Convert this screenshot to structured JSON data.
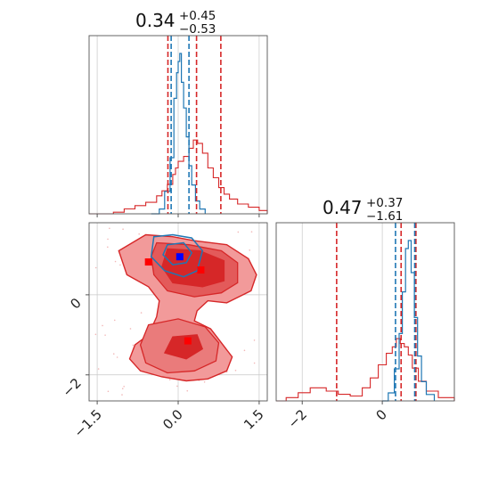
{
  "chart_data": {
    "type": "corner",
    "colors": {
      "primary": "#d62728",
      "secondary": "#1f77b4",
      "marker_blue": "#0000ff",
      "marker_red": "#ff0000"
    },
    "grid": true,
    "titles": [
      {
        "param": 0,
        "value": "0.34",
        "plus": "+0.45",
        "minus": "−0.53"
      },
      {
        "param": 1,
        "value": "0.47",
        "plus": "+0.37",
        "minus": "−1.61"
      }
    ],
    "axes": {
      "p0_ticks": [
        "−1.5",
        "0.0",
        "1.5"
      ],
      "p0_tick_values": [
        -1.5,
        0.0,
        1.5
      ],
      "p0_range": [
        -1.65,
        1.65
      ],
      "p1_ticks_y": [
        "0",
        "−2"
      ],
      "p1_tick_values_y": [
        0,
        -2
      ],
      "p1_range_y": [
        -2.65,
        1.8
      ],
      "p1_ticks_x": [
        "−2",
        "0"
      ],
      "p1_tick_values_x": [
        -2,
        0
      ],
      "p1_range_x": [
        -2.65,
        1.8
      ]
    },
    "hist_p0": {
      "red_bins": [
        [
          -1.65,
          0
        ],
        [
          -1.2,
          0.01
        ],
        [
          -1.0,
          0.03
        ],
        [
          -0.8,
          0.05
        ],
        [
          -0.6,
          0.07
        ],
        [
          -0.4,
          0.11
        ],
        [
          -0.3,
          0.14
        ],
        [
          -0.2,
          0.18
        ],
        [
          -0.1,
          0.24
        ],
        [
          -0.05,
          0.28
        ],
        [
          0.0,
          0.32
        ],
        [
          0.1,
          0.35
        ],
        [
          0.2,
          0.4
        ],
        [
          0.28,
          0.45
        ],
        [
          0.36,
          0.43
        ],
        [
          0.45,
          0.37
        ],
        [
          0.55,
          0.28
        ],
        [
          0.65,
          0.22
        ],
        [
          0.75,
          0.16
        ],
        [
          0.85,
          0.12
        ],
        [
          0.95,
          0.09
        ],
        [
          1.1,
          0.06
        ],
        [
          1.3,
          0.04
        ],
        [
          1.5,
          0.02
        ],
        [
          1.65,
          0
        ]
      ],
      "blue_bins": [
        [
          -0.5,
          0
        ],
        [
          -0.35,
          0.03
        ],
        [
          -0.25,
          0.14
        ],
        [
          -0.15,
          0.35
        ],
        [
          -0.08,
          0.72
        ],
        [
          -0.03,
          0.88
        ],
        [
          0.0,
          0.95
        ],
        [
          0.03,
          1.0
        ],
        [
          0.06,
          0.82
        ],
        [
          0.1,
          0.66
        ],
        [
          0.15,
          0.48
        ],
        [
          0.2,
          0.3
        ],
        [
          0.25,
          0.18
        ],
        [
          0.32,
          0.08
        ],
        [
          0.4,
          0.03
        ],
        [
          0.5,
          0
        ]
      ],
      "red_lines": [
        -0.19,
        0.34,
        0.79
      ],
      "blue_lines": [
        -0.13,
        0.2
      ]
    },
    "hist_p1": {
      "red_bins": [
        [
          -2.65,
          0
        ],
        [
          -2.4,
          0.02
        ],
        [
          -2.1,
          0.05
        ],
        [
          -1.8,
          0.08
        ],
        [
          -1.4,
          0.06
        ],
        [
          -1.1,
          0.04
        ],
        [
          -0.8,
          0.03
        ],
        [
          -0.5,
          0.08
        ],
        [
          -0.3,
          0.14
        ],
        [
          -0.1,
          0.22
        ],
        [
          0.1,
          0.29
        ],
        [
          0.25,
          0.33
        ],
        [
          0.35,
          0.38
        ],
        [
          0.45,
          0.35
        ],
        [
          0.55,
          0.33
        ],
        [
          0.65,
          0.28
        ],
        [
          0.75,
          0.2
        ],
        [
          0.9,
          0.12
        ],
        [
          1.1,
          0.06
        ],
        [
          1.4,
          0.02
        ],
        [
          1.8,
          0
        ]
      ],
      "blue_bins": [
        [
          0.0,
          0
        ],
        [
          0.15,
          0.05
        ],
        [
          0.3,
          0.2
        ],
        [
          0.42,
          0.42
        ],
        [
          0.5,
          0.68
        ],
        [
          0.58,
          0.95
        ],
        [
          0.65,
          1.0
        ],
        [
          0.72,
          0.8
        ],
        [
          0.8,
          0.52
        ],
        [
          0.88,
          0.28
        ],
        [
          0.98,
          0.12
        ],
        [
          1.1,
          0.04
        ],
        [
          1.3,
          0
        ]
      ],
      "red_lines": [
        -1.14,
        0.47,
        0.84
      ],
      "blue_lines": [
        0.33,
        0.81
      ]
    },
    "scatter_contours": {
      "outer_red": [
        [
          -1.1,
          1.1
        ],
        [
          -0.6,
          1.5
        ],
        [
          -0.1,
          1.45
        ],
        [
          0.3,
          1.35
        ],
        [
          0.9,
          1.25
        ],
        [
          1.3,
          0.9
        ],
        [
          1.45,
          0.5
        ],
        [
          1.35,
          0.1
        ],
        [
          0.9,
          -0.2
        ],
        [
          0.55,
          -0.15
        ],
        [
          0.35,
          -0.4
        ],
        [
          0.3,
          -0.65
        ],
        [
          0.6,
          -0.85
        ],
        [
          0.8,
          -1.2
        ],
        [
          1.0,
          -1.55
        ],
        [
          0.9,
          -1.9
        ],
        [
          0.55,
          -2.1
        ],
        [
          0.15,
          -2.15
        ],
        [
          -0.3,
          -2.05
        ],
        [
          -0.7,
          -1.9
        ],
        [
          -0.9,
          -1.6
        ],
        [
          -0.8,
          -1.25
        ],
        [
          -0.55,
          -1.0
        ],
        [
          -0.4,
          -0.55
        ],
        [
          -0.35,
          -0.15
        ],
        [
          -0.55,
          0.2
        ],
        [
          -0.95,
          0.5
        ]
      ],
      "mid_red_top": [
        [
          -0.4,
          1.3
        ],
        [
          0.2,
          1.25
        ],
        [
          0.8,
          1.1
        ],
        [
          1.1,
          0.8
        ],
        [
          1.1,
          0.3
        ],
        [
          0.8,
          0.05
        ],
        [
          0.3,
          -0.05
        ],
        [
          -0.2,
          0.1
        ],
        [
          -0.45,
          0.5
        ],
        [
          -0.5,
          0.95
        ]
      ],
      "mid_red_bot": [
        [
          -0.55,
          -0.75
        ],
        [
          0.0,
          -0.6
        ],
        [
          0.5,
          -0.8
        ],
        [
          0.75,
          -1.2
        ],
        [
          0.7,
          -1.65
        ],
        [
          0.3,
          -1.9
        ],
        [
          -0.2,
          -1.95
        ],
        [
          -0.6,
          -1.7
        ],
        [
          -0.7,
          -1.25
        ]
      ],
      "inner_red_top": [
        [
          -0.2,
          1.15
        ],
        [
          0.4,
          1.1
        ],
        [
          0.85,
          0.85
        ],
        [
          0.85,
          0.35
        ],
        [
          0.45,
          0.2
        ],
        [
          -0.1,
          0.3
        ],
        [
          -0.3,
          0.7
        ]
      ],
      "inner_red_bot": [
        [
          -0.1,
          -1.05
        ],
        [
          0.35,
          -1.0
        ],
        [
          0.45,
          -1.35
        ],
        [
          0.15,
          -1.6
        ],
        [
          -0.25,
          -1.45
        ]
      ],
      "blue_outer": [
        [
          -0.45,
          1.45
        ],
        [
          -0.1,
          1.5
        ],
        [
          0.25,
          1.42
        ],
        [
          0.45,
          1.1
        ],
        [
          0.35,
          0.6
        ],
        [
          0.1,
          0.45
        ],
        [
          -0.25,
          0.6
        ],
        [
          -0.5,
          0.95
        ]
      ],
      "blue_inner": [
        [
          -0.2,
          1.25
        ],
        [
          0.1,
          1.3
        ],
        [
          0.25,
          1.05
        ],
        [
          0.15,
          0.8
        ],
        [
          -0.1,
          0.75
        ],
        [
          -0.28,
          1.0
        ]
      ]
    },
    "markers": [
      {
        "color": "marker_blue",
        "x": 0.03,
        "y": 0.95
      },
      {
        "color": "marker_red",
        "x": -0.55,
        "y": 0.82
      },
      {
        "color": "marker_red",
        "x": 0.42,
        "y": 0.62
      },
      {
        "color": "marker_red",
        "x": 0.18,
        "y": -1.15
      }
    ]
  }
}
